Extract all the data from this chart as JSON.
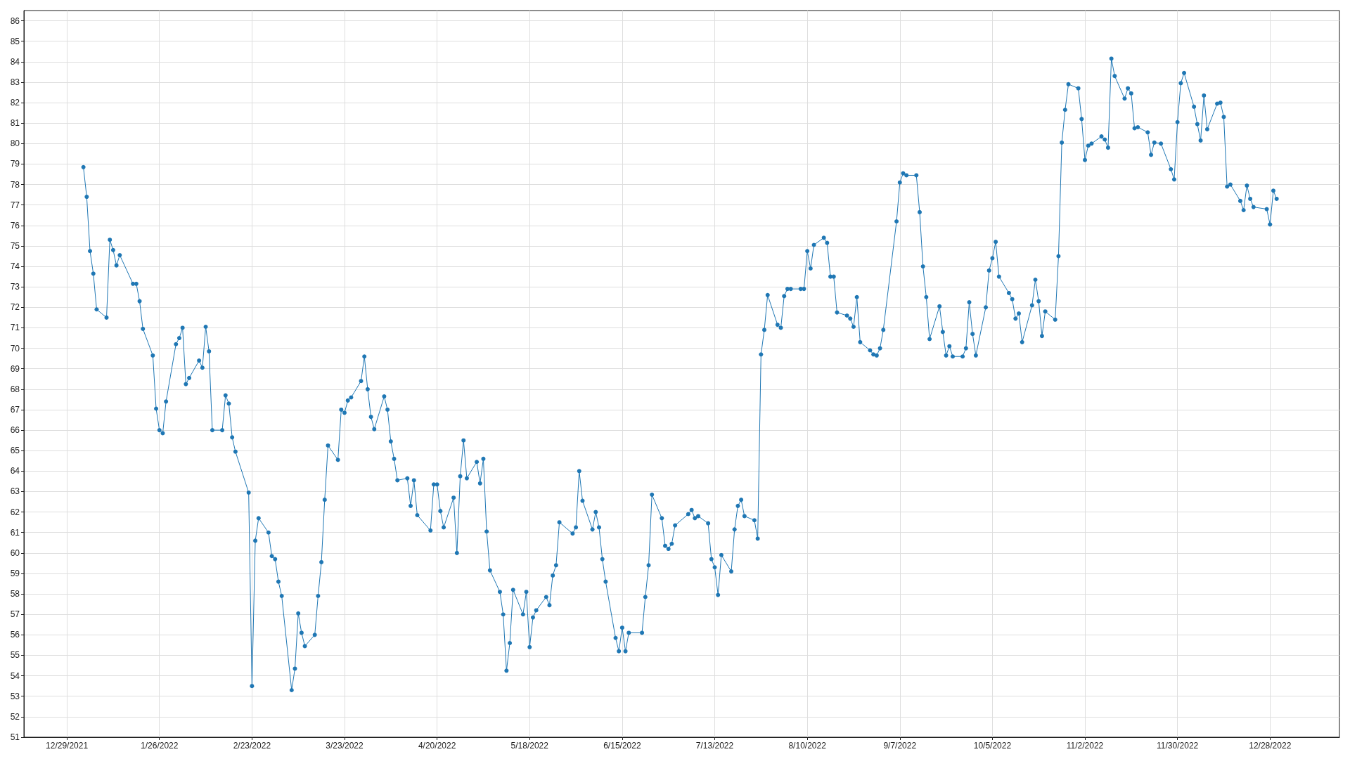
{
  "chart_data": {
    "type": "line",
    "color": "#1f77b4",
    "marker": "circle",
    "line_style": "solid",
    "grid": true,
    "xlim": [
      "2021-12-16",
      "2023-01-18"
    ],
    "ylim": [
      51,
      86.5
    ],
    "xticks": [
      {
        "value": "2021-12-29",
        "label": "12/29/2021"
      },
      {
        "value": "2022-01-26",
        "label": "1/26/2022"
      },
      {
        "value": "2022-02-23",
        "label": "2/23/2022"
      },
      {
        "value": "2022-03-23",
        "label": "3/23/2022"
      },
      {
        "value": "2022-04-20",
        "label": "4/20/2022"
      },
      {
        "value": "2022-05-18",
        "label": "5/18/2022"
      },
      {
        "value": "2022-06-15",
        "label": "6/15/2022"
      },
      {
        "value": "2022-07-13",
        "label": "7/13/2022"
      },
      {
        "value": "2022-08-10",
        "label": "8/10/2022"
      },
      {
        "value": "2022-09-07",
        "label": "9/7/2022"
      },
      {
        "value": "2022-10-05",
        "label": "10/5/2022"
      },
      {
        "value": "2022-11-02",
        "label": "11/2/2022"
      },
      {
        "value": "2022-11-30",
        "label": "11/30/2022"
      },
      {
        "value": "2022-12-28",
        "label": "12/28/2022"
      }
    ],
    "yticks": [
      51,
      52,
      53,
      54,
      55,
      56,
      57,
      58,
      59,
      60,
      61,
      62,
      63,
      64,
      65,
      66,
      67,
      68,
      69,
      70,
      71,
      72,
      73,
      74,
      75,
      76,
      77,
      78,
      79,
      80,
      81,
      82,
      83,
      84,
      85,
      86
    ],
    "x": [
      "2022-01-03",
      "2022-01-04",
      "2022-01-05",
      "2022-01-06",
      "2022-01-07",
      "2022-01-10",
      "2022-01-11",
      "2022-01-12",
      "2022-01-13",
      "2022-01-14",
      "2022-01-18",
      "2022-01-19",
      "2022-01-20",
      "2022-01-21",
      "2022-01-24",
      "2022-01-25",
      "2022-01-26",
      "2022-01-27",
      "2022-01-28",
      "2022-01-31",
      "2022-02-01",
      "2022-02-02",
      "2022-02-03",
      "2022-02-04",
      "2022-02-07",
      "2022-02-08",
      "2022-02-09",
      "2022-02-10",
      "2022-02-11",
      "2022-02-14",
      "2022-02-15",
      "2022-02-16",
      "2022-02-17",
      "2022-02-18",
      "2022-02-22",
      "2022-02-23",
      "2022-02-24",
      "2022-02-25",
      "2022-02-28",
      "2022-03-01",
      "2022-03-02",
      "2022-03-03",
      "2022-03-04",
      "2022-03-07",
      "2022-03-08",
      "2022-03-09",
      "2022-03-10",
      "2022-03-11",
      "2022-03-14",
      "2022-03-15",
      "2022-03-16",
      "2022-03-17",
      "2022-03-18",
      "2022-03-21",
      "2022-03-22",
      "2022-03-23",
      "2022-03-24",
      "2022-03-25",
      "2022-03-28",
      "2022-03-29",
      "2022-03-30",
      "2022-03-31",
      "2022-04-01",
      "2022-04-04",
      "2022-04-05",
      "2022-04-06",
      "2022-04-07",
      "2022-04-08",
      "2022-04-11",
      "2022-04-12",
      "2022-04-13",
      "2022-04-14",
      "2022-04-18",
      "2022-04-19",
      "2022-04-20",
      "2022-04-21",
      "2022-04-22",
      "2022-04-25",
      "2022-04-26",
      "2022-04-27",
      "2022-04-28",
      "2022-04-29",
      "2022-05-02",
      "2022-05-03",
      "2022-05-04",
      "2022-05-05",
      "2022-05-06",
      "2022-05-09",
      "2022-05-10",
      "2022-05-11",
      "2022-05-12",
      "2022-05-13",
      "2022-05-16",
      "2022-05-17",
      "2022-05-18",
      "2022-05-19",
      "2022-05-20",
      "2022-05-23",
      "2022-05-24",
      "2022-05-25",
      "2022-05-26",
      "2022-05-27",
      "2022-05-31",
      "2022-06-01",
      "2022-06-02",
      "2022-06-03",
      "2022-06-06",
      "2022-06-07",
      "2022-06-08",
      "2022-06-09",
      "2022-06-10",
      "2022-06-13",
      "2022-06-14",
      "2022-06-15",
      "2022-06-16",
      "2022-06-17",
      "2022-06-21",
      "2022-06-22",
      "2022-06-23",
      "2022-06-24",
      "2022-06-27",
      "2022-06-28",
      "2022-06-29",
      "2022-06-30",
      "2022-07-01",
      "2022-07-05",
      "2022-07-06",
      "2022-07-07",
      "2022-07-08",
      "2022-07-11",
      "2022-07-12",
      "2022-07-13",
      "2022-07-14",
      "2022-07-15",
      "2022-07-18",
      "2022-07-19",
      "2022-07-20",
      "2022-07-21",
      "2022-07-22",
      "2022-07-25",
      "2022-07-26",
      "2022-07-27",
      "2022-07-28",
      "2022-07-29",
      "2022-08-01",
      "2022-08-02",
      "2022-08-03",
      "2022-08-04",
      "2022-08-05",
      "2022-08-08",
      "2022-08-09",
      "2022-08-10",
      "2022-08-11",
      "2022-08-12",
      "2022-08-15",
      "2022-08-16",
      "2022-08-17",
      "2022-08-18",
      "2022-08-19",
      "2022-08-22",
      "2022-08-23",
      "2022-08-24",
      "2022-08-25",
      "2022-08-26",
      "2022-08-29",
      "2022-08-30",
      "2022-08-31",
      "2022-09-01",
      "2022-09-02",
      "2022-09-06",
      "2022-09-07",
      "2022-09-08",
      "2022-09-09",
      "2022-09-12",
      "2022-09-13",
      "2022-09-14",
      "2022-09-15",
      "2022-09-16",
      "2022-09-19",
      "2022-09-20",
      "2022-09-21",
      "2022-09-22",
      "2022-09-23",
      "2022-09-26",
      "2022-09-27",
      "2022-09-28",
      "2022-09-29",
      "2022-09-30",
      "2022-10-03",
      "2022-10-04",
      "2022-10-05",
      "2022-10-06",
      "2022-10-07",
      "2022-10-10",
      "2022-10-11",
      "2022-10-12",
      "2022-10-13",
      "2022-10-14",
      "2022-10-17",
      "2022-10-18",
      "2022-10-19",
      "2022-10-20",
      "2022-10-21",
      "2022-10-24",
      "2022-10-25",
      "2022-10-26",
      "2022-10-27",
      "2022-10-28",
      "2022-10-31",
      "2022-11-01",
      "2022-11-02",
      "2022-11-03",
      "2022-11-04",
      "2022-11-07",
      "2022-11-08",
      "2022-11-09",
      "2022-11-10",
      "2022-11-11",
      "2022-11-14",
      "2022-11-15",
      "2022-11-16",
      "2022-11-17",
      "2022-11-18",
      "2022-11-21",
      "2022-11-22",
      "2022-11-23",
      "2022-11-25",
      "2022-11-28",
      "2022-11-29",
      "2022-11-30",
      "2022-12-01",
      "2022-12-02",
      "2022-12-05",
      "2022-12-06",
      "2022-12-07",
      "2022-12-08",
      "2022-12-09",
      "2022-12-12",
      "2022-12-13",
      "2022-12-14",
      "2022-12-15",
      "2022-12-16",
      "2022-12-19",
      "2022-12-20",
      "2022-12-21",
      "2022-12-22",
      "2022-12-23",
      "2022-12-27",
      "2022-12-28",
      "2022-12-29",
      "2022-12-30"
    ],
    "values": [
      78.85,
      77.4,
      74.75,
      73.65,
      71.9,
      71.5,
      75.3,
      74.8,
      74.05,
      74.55,
      73.15,
      73.15,
      72.3,
      70.95,
      69.65,
      67.05,
      66.0,
      65.85,
      67.4,
      70.2,
      70.5,
      71.0,
      68.25,
      68.55,
      69.4,
      69.05,
      71.05,
      69.85,
      66.0,
      66.0,
      67.7,
      67.3,
      65.65,
      64.95,
      62.95,
      53.5,
      60.6,
      61.7,
      61.0,
      59.85,
      59.7,
      58.6,
      57.9,
      53.3,
      54.35,
      57.05,
      56.1,
      55.45,
      56.0,
      57.9,
      59.55,
      62.6,
      65.25,
      64.55,
      67.0,
      66.85,
      67.45,
      67.6,
      68.4,
      69.6,
      68.0,
      66.65,
      66.05,
      67.65,
      67.0,
      65.45,
      64.6,
      63.55,
      63.65,
      62.3,
      63.55,
      61.85,
      61.1,
      63.35,
      63.35,
      62.05,
      61.25,
      62.7,
      60.0,
      63.75,
      65.5,
      63.65,
      64.45,
      63.4,
      64.6,
      61.05,
      59.15,
      58.1,
      57.0,
      54.25,
      55.6,
      58.2,
      57.0,
      58.1,
      55.4,
      56.85,
      57.2,
      57.85,
      57.45,
      58.9,
      59.4,
      61.5,
      60.95,
      61.25,
      64.0,
      62.55,
      61.15,
      62.0,
      61.25,
      59.7,
      58.6,
      55.85,
      55.2,
      56.35,
      55.2,
      56.1,
      56.1,
      57.85,
      59.4,
      62.85,
      61.7,
      60.35,
      60.2,
      60.45,
      61.35,
      61.9,
      62.1,
      61.7,
      61.8,
      61.45,
      59.7,
      59.3,
      57.95,
      59.9,
      59.1,
      61.15,
      62.3,
      62.6,
      61.8,
      61.6,
      60.7,
      69.7,
      70.9,
      72.6,
      71.15,
      71.0,
      72.55,
      72.9,
      72.9,
      72.9,
      72.9,
      74.75,
      73.9,
      75.05,
      75.4,
      75.15,
      73.5,
      73.5,
      71.75,
      71.6,
      71.45,
      71.05,
      72.5,
      70.3,
      69.9,
      69.7,
      69.65,
      70.0,
      70.9,
      76.2,
      78.1,
      78.55,
      78.45,
      78.45,
      76.65,
      74.0,
      72.5,
      70.45,
      72.05,
      70.8,
      69.65,
      70.1,
      69.6,
      69.6,
      70.0,
      72.25,
      70.7,
      69.65,
      72.0,
      73.8,
      74.4,
      75.2,
      73.5,
      72.7,
      72.4,
      71.45,
      71.7,
      70.3,
      72.1,
      73.35,
      72.3,
      70.6,
      71.8,
      71.4,
      74.5,
      80.05,
      81.65,
      82.9,
      82.7,
      81.2,
      79.2,
      79.9,
      80.0,
      80.35,
      80.2,
      79.8,
      84.15,
      83.3,
      82.2,
      82.7,
      82.45,
      80.75,
      80.8,
      80.55,
      79.45,
      80.05,
      80.0,
      78.75,
      78.25,
      81.05,
      82.95,
      83.45,
      81.8,
      80.95,
      80.15,
      82.35,
      80.7,
      81.95,
      82.0,
      81.3,
      77.9,
      78.0,
      77.2,
      76.75,
      77.95,
      77.3,
      76.9,
      76.8,
      76.05,
      77.7,
      77.3
    ]
  }
}
